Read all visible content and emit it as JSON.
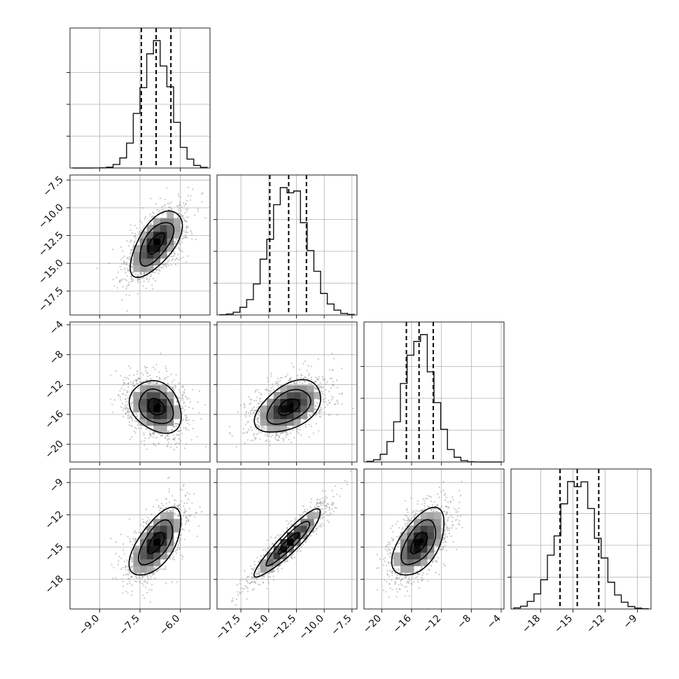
{
  "chart_data": {
    "type": "scatter",
    "title": "",
    "plot_kind": "corner",
    "parameters": [
      {
        "index": 0,
        "label": "",
        "mean": -6.9,
        "sd": 0.55,
        "range": [
          -10.0,
          -5.0
        ],
        "ticks": [
          -9.0,
          -7.5,
          -6.0
        ],
        "tick_labels": [
          "−9.0",
          "−7.5",
          "−6.0"
        ],
        "quantiles": [
          -7.45,
          -6.9,
          -6.35
        ]
      },
      {
        "index": 1,
        "label": "",
        "mean": -13.2,
        "sd": 1.7,
        "range": [
          -19.4,
          -7.3
        ],
        "ticks": [
          -17.5,
          -15.0,
          -12.5,
          -10.0,
          -7.5
        ],
        "tick_labels": [
          "−17.5",
          "−15.0",
          "−12.5",
          "−10.0",
          "−7.5"
        ],
        "quantiles": [
          -14.9,
          -13.2,
          -11.6
        ]
      },
      {
        "index": 2,
        "label": "",
        "mean": -15.0,
        "sd": 2.0,
        "range": [
          -22.0,
          -4.0
        ],
        "ticks": [
          -20,
          -16,
          -12,
          -8,
          -4
        ],
        "tick_labels": [
          "−20",
          "−16",
          "−12",
          "−8",
          "−4"
        ],
        "quantiles": [
          -16.7,
          -15.0,
          -13.1
        ]
      },
      {
        "index": 3,
        "label": "",
        "mean": -14.6,
        "sd": 1.8,
        "range": [
          -20.5,
          -8.0
        ],
        "ticks": [
          -18,
          -15,
          -12,
          -9
        ],
        "tick_labels": [
          "−18",
          "−15",
          "−12",
          "−9"
        ],
        "quantiles": [
          -16.2,
          -14.6,
          -12.6
        ]
      }
    ],
    "correlations": [
      {
        "pair": [
          0,
          1
        ],
        "rho": 0.62
      },
      {
        "pair": [
          0,
          2
        ],
        "rho": -0.25
      },
      {
        "pair": [
          1,
          2
        ],
        "rho": 0.45
      },
      {
        "pair": [
          0,
          3
        ],
        "rho": 0.62
      },
      {
        "pair": [
          1,
          3
        ],
        "rho": 0.92
      },
      {
        "pair": [
          2,
          3
        ],
        "rho": 0.55
      }
    ],
    "histogram": {
      "bins": 20,
      "quantile_lines": "dashed"
    },
    "contour_levels": 3,
    "grid": true,
    "legend": "none"
  }
}
